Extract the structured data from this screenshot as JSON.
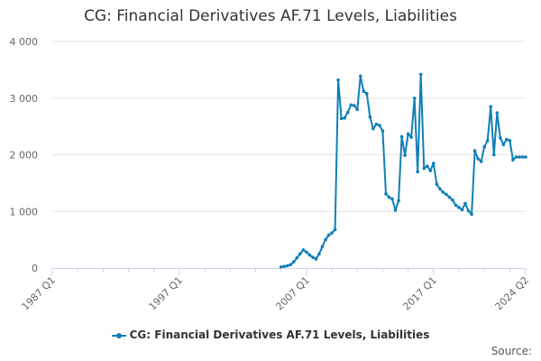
{
  "chart_data": {
    "type": "line",
    "title": "CG: Financial Derivatives AF.71 Levels, Liabilities",
    "xlabel": "",
    "ylabel": "",
    "ylim": [
      0,
      4000
    ],
    "yticks": [
      0,
      1000,
      2000,
      3000,
      4000
    ],
    "ytick_labels": [
      "0",
      "1 000",
      "2 000",
      "3 000",
      "4 000"
    ],
    "xrange": [
      "1987 Q1",
      "2024 Q2"
    ],
    "xtick_labels": [
      "1987 Q1",
      "1997 Q1",
      "2007 Q1",
      "2017 Q1",
      "2024 Q2"
    ],
    "grid": true,
    "legend_position": "bottom",
    "series": [
      {
        "name": "CG: Financial Derivatives AF.71 Levels, Liabilities",
        "color": "#0f7fb8",
        "x": [
          "2005 Q1",
          "2005 Q2",
          "2005 Q3",
          "2005 Q4",
          "2006 Q1",
          "2006 Q2",
          "2006 Q3",
          "2006 Q4",
          "2007 Q1",
          "2007 Q2",
          "2007 Q3",
          "2007 Q4",
          "2008 Q1",
          "2008 Q2",
          "2008 Q3",
          "2008 Q4",
          "2009 Q1",
          "2009 Q2",
          "2009 Q3",
          "2009 Q4",
          "2010 Q1",
          "2010 Q2",
          "2010 Q3",
          "2010 Q4",
          "2011 Q1",
          "2011 Q2",
          "2011 Q3",
          "2011 Q4",
          "2012 Q1",
          "2012 Q2",
          "2012 Q3",
          "2012 Q4",
          "2013 Q1",
          "2013 Q2",
          "2013 Q3",
          "2013 Q4",
          "2014 Q1",
          "2014 Q2",
          "2014 Q3",
          "2014 Q4",
          "2015 Q1",
          "2015 Q2",
          "2015 Q3",
          "2015 Q4",
          "2016 Q1",
          "2016 Q2",
          "2016 Q3",
          "2016 Q4",
          "2017 Q1",
          "2017 Q2",
          "2017 Q3",
          "2017 Q4",
          "2018 Q1",
          "2018 Q2",
          "2018 Q3",
          "2018 Q4",
          "2019 Q1",
          "2019 Q2",
          "2019 Q3",
          "2019 Q4",
          "2020 Q1",
          "2020 Q2",
          "2020 Q3",
          "2020 Q4",
          "2021 Q1",
          "2021 Q2",
          "2021 Q3",
          "2021 Q4",
          "2022 Q1",
          "2022 Q2",
          "2022 Q3",
          "2022 Q4",
          "2023 Q1",
          "2023 Q2",
          "2023 Q3",
          "2023 Q4",
          "2024 Q1",
          "2024 Q2"
        ],
        "values": [
          20,
          30,
          40,
          60,
          110,
          180,
          250,
          320,
          280,
          230,
          190,
          160,
          250,
          380,
          500,
          580,
          620,
          680,
          3320,
          2640,
          2650,
          2750,
          2880,
          2870,
          2800,
          3390,
          3120,
          3080,
          2670,
          2460,
          2540,
          2520,
          2420,
          1310,
          1250,
          1220,
          1020,
          1190,
          2320,
          1990,
          2370,
          2310,
          3000,
          1700,
          3420,
          1760,
          1800,
          1720,
          1850,
          1480,
          1400,
          1340,
          1300,
          1250,
          1200,
          1110,
          1070,
          1030,
          1140,
          1010,
          950,
          2070,
          1930,
          1880,
          2140,
          2250,
          2850,
          2000,
          2740,
          2300,
          2180,
          2270,
          2250,
          1910,
          1960,
          1960,
          1960,
          1960
        ]
      }
    ]
  },
  "legend": {
    "label": "CG: Financial Derivatives AF.71 Levels, Liabilities"
  },
  "footer": {
    "source": "Source:"
  }
}
